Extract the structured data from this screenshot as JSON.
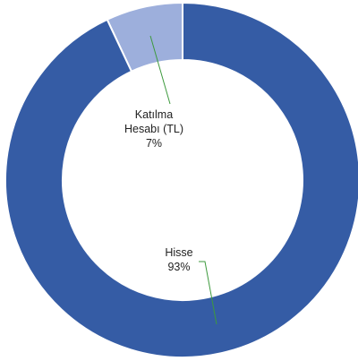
{
  "chart_data": {
    "type": "donut",
    "categories": [
      "Hisse",
      "Katılma Hesabı (TL)"
    ],
    "values": [
      93,
      7
    ],
    "value_labels": [
      "93%",
      "7%"
    ],
    "colors": [
      "#355ca5",
      "#9dafdc"
    ]
  }
}
